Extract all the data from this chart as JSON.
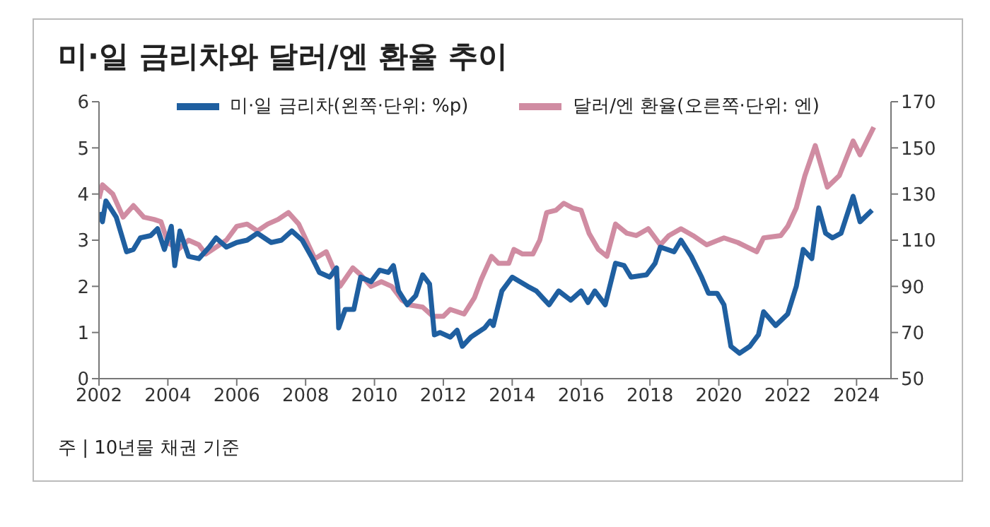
{
  "chart_data": {
    "type": "line",
    "title": "미·일 금리차와 달러/엔 환율 추이",
    "xlim": [
      2002,
      2025
    ],
    "xticks": [
      2002,
      2004,
      2006,
      2008,
      2010,
      2012,
      2014,
      2016,
      2018,
      2020,
      2022,
      2024
    ],
    "ylim": [
      0,
      6
    ],
    "yticks": [
      0,
      1,
      2,
      3,
      4,
      5,
      6
    ],
    "y2lim": [
      50,
      170
    ],
    "y2ticks": [
      50,
      70,
      90,
      110,
      130,
      150,
      170
    ],
    "grid": false,
    "legend": "top",
    "marker": "none",
    "line_style": "solid",
    "annotations": [
      "주 | 10년물 채권 기준"
    ],
    "series": [
      {
        "name": "미·일 금리차(왼쪽·단위: %p)",
        "color": "#1f5fa0",
        "x": [
          2002.0,
          2002.1,
          2002.2,
          2002.5,
          2002.8,
          2003.0,
          2003.2,
          2003.5,
          2003.7,
          2003.9,
          2004.1,
          2004.2,
          2004.35,
          2004.6,
          2004.9,
          2005.2,
          2005.4,
          2005.7,
          2006.0,
          2006.3,
          2006.6,
          2006.8,
          2007.0,
          2007.3,
          2007.6,
          2007.9,
          2008.2,
          2008.4,
          2008.7,
          2008.9,
          2008.96,
          2009.15,
          2009.4,
          2009.6,
          2009.9,
          2010.15,
          2010.4,
          2010.55,
          2010.7,
          2010.95,
          2011.2,
          2011.4,
          2011.6,
          2011.74,
          2011.9,
          2012.2,
          2012.4,
          2012.55,
          2012.8,
          2013.2,
          2013.36,
          2013.45,
          2013.7,
          2014.0,
          2014.45,
          2014.7,
          2015.07,
          2015.35,
          2015.7,
          2016.0,
          2016.2,
          2016.4,
          2016.7,
          2017.0,
          2017.25,
          2017.45,
          2017.9,
          2018.15,
          2018.3,
          2018.7,
          2018.9,
          2019.2,
          2019.5,
          2019.7,
          2019.95,
          2020.15,
          2020.35,
          2020.6,
          2020.9,
          2021.15,
          2021.3,
          2021.65,
          2022.0,
          2022.25,
          2022.45,
          2022.7,
          2022.9,
          2023.1,
          2023.3,
          2023.55,
          2023.9,
          2024.1,
          2024.45
        ],
        "values": [
          3.6,
          3.4,
          3.85,
          3.5,
          2.75,
          2.8,
          3.05,
          3.1,
          3.25,
          2.8,
          3.3,
          2.45,
          3.2,
          2.65,
          2.6,
          2.85,
          3.05,
          2.85,
          2.95,
          3.0,
          3.15,
          3.05,
          2.95,
          3.0,
          3.2,
          3.0,
          2.6,
          2.3,
          2.2,
          2.4,
          1.1,
          1.5,
          1.5,
          2.2,
          2.1,
          2.35,
          2.3,
          2.45,
          1.9,
          1.6,
          1.8,
          2.25,
          2.05,
          0.95,
          1.0,
          0.9,
          1.05,
          0.7,
          0.9,
          1.1,
          1.25,
          1.15,
          1.9,
          2.2,
          2.0,
          1.9,
          1.6,
          1.9,
          1.7,
          1.9,
          1.65,
          1.9,
          1.6,
          2.5,
          2.45,
          2.2,
          2.25,
          2.5,
          2.85,
          2.75,
          3.0,
          2.65,
          2.2,
          1.85,
          1.85,
          1.6,
          0.7,
          0.55,
          0.7,
          0.95,
          1.45,
          1.15,
          1.4,
          2.0,
          2.8,
          2.6,
          3.7,
          3.15,
          3.05,
          3.15,
          3.95,
          3.4,
          3.65
        ]
      },
      {
        "name": "달러/엔 환율(오른쪽·단위: 엔)",
        "color": "#d08ca2",
        "axis": "y2",
        "x": [
          2002.0,
          2002.1,
          2002.4,
          2002.7,
          2003.0,
          2003.3,
          2003.6,
          2003.8,
          2004.0,
          2004.3,
          2004.6,
          2004.9,
          2005.1,
          2005.4,
          2005.7,
          2006.0,
          2006.3,
          2006.6,
          2006.9,
          2007.2,
          2007.5,
          2007.8,
          2008.27,
          2008.6,
          2008.8,
          2009.0,
          2009.37,
          2009.6,
          2009.9,
          2010.2,
          2010.5,
          2010.8,
          2011.0,
          2011.4,
          2011.7,
          2012.0,
          2012.2,
          2012.6,
          2012.9,
          2013.1,
          2013.4,
          2013.6,
          2013.9,
          2014.05,
          2014.3,
          2014.6,
          2014.8,
          2015.0,
          2015.27,
          2015.5,
          2015.75,
          2016.0,
          2016.23,
          2016.5,
          2016.75,
          2017.0,
          2017.33,
          2017.6,
          2017.95,
          2018.3,
          2018.55,
          2018.9,
          2019.25,
          2019.65,
          2020.15,
          2020.55,
          2021.1,
          2021.3,
          2021.8,
          2022.0,
          2022.25,
          2022.5,
          2022.8,
          2023.15,
          2023.5,
          2023.9,
          2024.1,
          2024.5
        ],
        "values": [
          128,
          134,
          130,
          120,
          125,
          120,
          119,
          118,
          109,
          106,
          110,
          108,
          104,
          107,
          110,
          116,
          117,
          114,
          117,
          119,
          122,
          117,
          102,
          105,
          98,
          90,
          98,
          95,
          90,
          92,
          90,
          84,
          82,
          81,
          77,
          77,
          80,
          78,
          85,
          93,
          103,
          100,
          100,
          106,
          104,
          104,
          110,
          122,
          123,
          126,
          124,
          123,
          113,
          106,
          103,
          117,
          113,
          112,
          115,
          108,
          112,
          115,
          112,
          108,
          111,
          109,
          105,
          111,
          112,
          116,
          124,
          138,
          151,
          133,
          138,
          153,
          147,
          159
        ]
      }
    ]
  }
}
